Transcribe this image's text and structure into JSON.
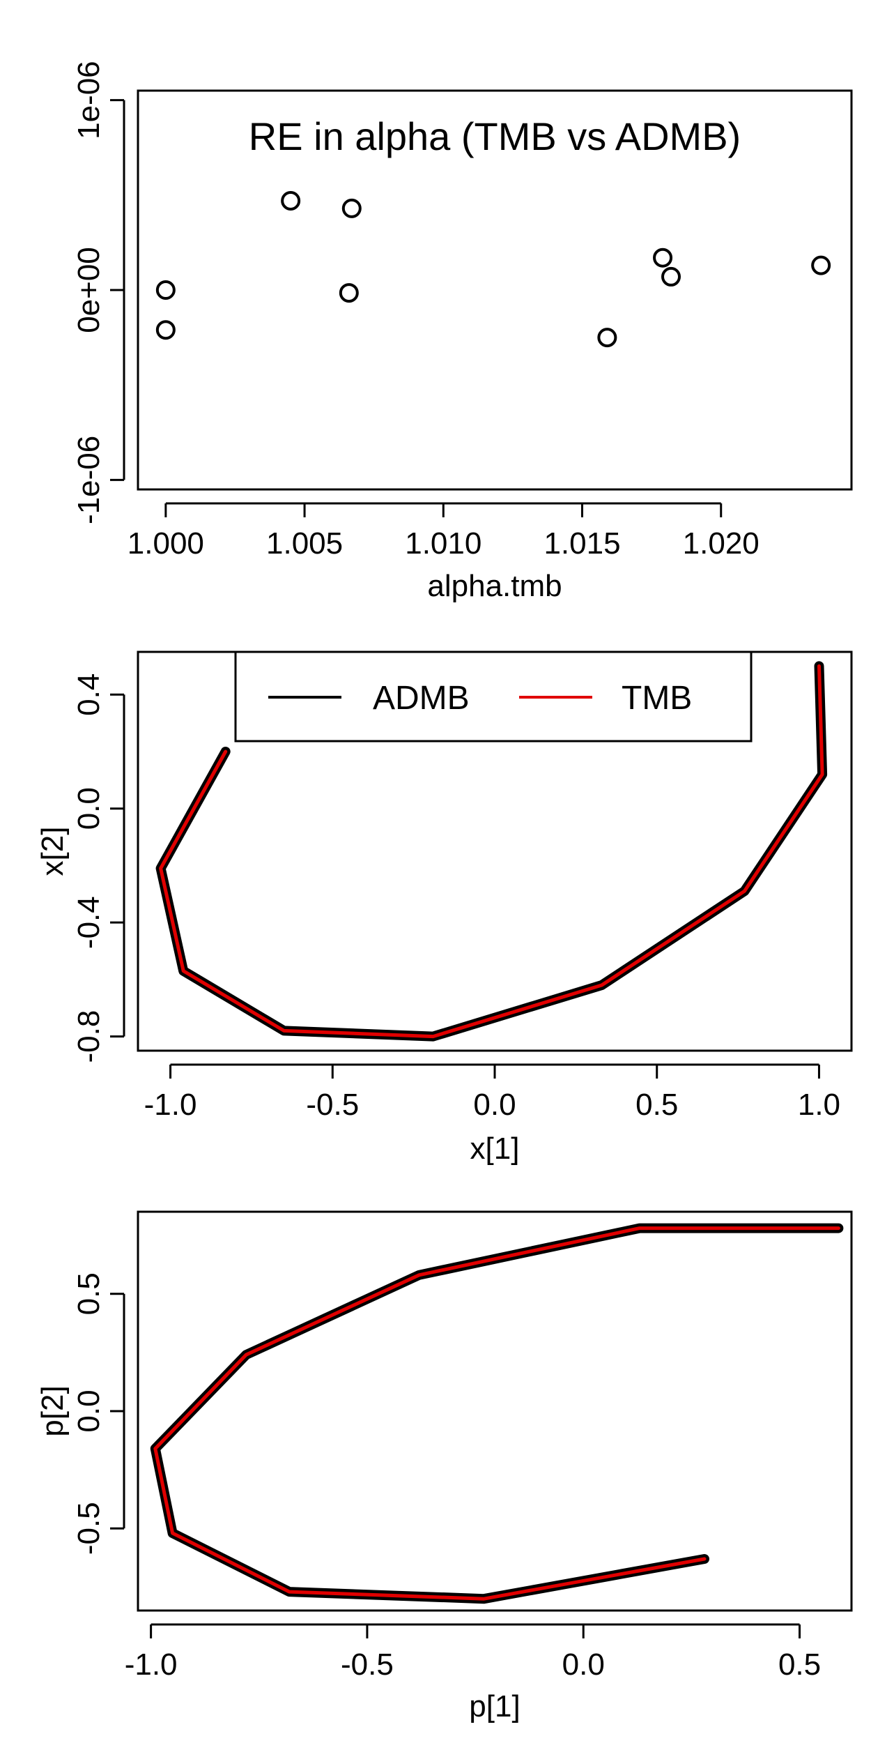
{
  "chart_data": [
    {
      "type": "scatter",
      "title": "RE in alpha (TMB vs ADMB)",
      "xlabel": "alpha.tmb",
      "ylabel": "",
      "xlim": [
        0.999,
        1.0247
      ],
      "ylim": [
        -1.05e-06,
        1.05e-06
      ],
      "grid": false,
      "x_ticks": [
        1.0,
        1.005,
        1.01,
        1.015,
        1.02
      ],
      "x_tick_labels": [
        "1.000",
        "1.005",
        "1.010",
        "1.015",
        "1.020"
      ],
      "y_ticks": [
        -1e-06,
        0,
        1e-06
      ],
      "y_tick_labels": [
        "-1e-06",
        "0e+00",
        "1e-06"
      ],
      "points": [
        {
          "x": 1.0,
          "y": 0.0
        },
        {
          "x": 1.0,
          "y": -2.1e-07
        },
        {
          "x": 1.0045,
          "y": 4.7e-07
        },
        {
          "x": 1.0066,
          "y": -1.5e-08
        },
        {
          "x": 1.0067,
          "y": 4.3e-07
        },
        {
          "x": 1.0159,
          "y": -2.5e-07
        },
        {
          "x": 1.0179,
          "y": 1.7e-07
        },
        {
          "x": 1.0182,
          "y": 7e-08
        },
        {
          "x": 1.0236,
          "y": 1.3e-07
        }
      ]
    },
    {
      "type": "line",
      "title": "",
      "xlabel": "x[1]",
      "ylabel": "x[2]",
      "xlim": [
        -1.1,
        1.1
      ],
      "ylim": [
        -0.85,
        0.55
      ],
      "grid": false,
      "x_ticks": [
        -1.0,
        -0.5,
        0.0,
        0.5,
        1.0
      ],
      "x_tick_labels": [
        "-1.0",
        "-0.5",
        "0.0",
        "0.5",
        "1.0"
      ],
      "y_ticks": [
        -0.8,
        -0.4,
        0.0,
        0.4
      ],
      "y_tick_labels": [
        "-0.8",
        "-0.4",
        "0.0",
        "0.4"
      ],
      "legend": {
        "position": "top",
        "entries": [
          "ADMB",
          "TMB"
        ]
      },
      "series": [
        {
          "name": "ADMB",
          "color": "#000000",
          "width": 14,
          "x": [
            -0.83,
            -1.03,
            -0.96,
            -0.65,
            -0.19,
            0.33,
            0.77,
            1.01,
            1.0
          ],
          "y": [
            0.2,
            -0.21,
            -0.57,
            -0.78,
            -0.8,
            -0.62,
            -0.29,
            0.12,
            0.5
          ]
        },
        {
          "name": "TMB",
          "color": "#e00000",
          "width": 5,
          "x": [
            -0.83,
            -1.03,
            -0.96,
            -0.65,
            -0.19,
            0.33,
            0.77,
            1.01,
            1.0
          ],
          "y": [
            0.2,
            -0.21,
            -0.57,
            -0.78,
            -0.8,
            -0.62,
            -0.29,
            0.12,
            0.5
          ]
        }
      ]
    },
    {
      "type": "line",
      "title": "",
      "xlabel": "p[1]",
      "ylabel": "p[2]",
      "xlim": [
        -1.03,
        0.62
      ],
      "ylim": [
        -0.85,
        0.85
      ],
      "grid": false,
      "x_ticks": [
        -1.0,
        -0.5,
        0.0,
        0.5
      ],
      "x_tick_labels": [
        "-1.0",
        "-0.5",
        "0.0",
        "0.5"
      ],
      "y_ticks": [
        -0.5,
        0.0,
        0.5
      ],
      "y_tick_labels": [
        "-0.5",
        "0.0",
        "0.5"
      ],
      "series": [
        {
          "name": "ADMB",
          "color": "#000000",
          "width": 14,
          "x": [
            0.28,
            -0.23,
            -0.68,
            -0.95,
            -0.99,
            -0.78,
            -0.38,
            0.13,
            0.59
          ],
          "y": [
            -0.63,
            -0.8,
            -0.77,
            -0.52,
            -0.16,
            0.24,
            0.58,
            0.78,
            0.78
          ]
        },
        {
          "name": "TMB",
          "color": "#e00000",
          "width": 5,
          "x": [
            0.28,
            -0.23,
            -0.68,
            -0.95,
            -0.99,
            -0.78,
            -0.38,
            0.13,
            0.59
          ],
          "y": [
            -0.63,
            -0.8,
            -0.77,
            -0.52,
            -0.16,
            0.24,
            0.58,
            0.78,
            0.78
          ]
        }
      ]
    }
  ]
}
